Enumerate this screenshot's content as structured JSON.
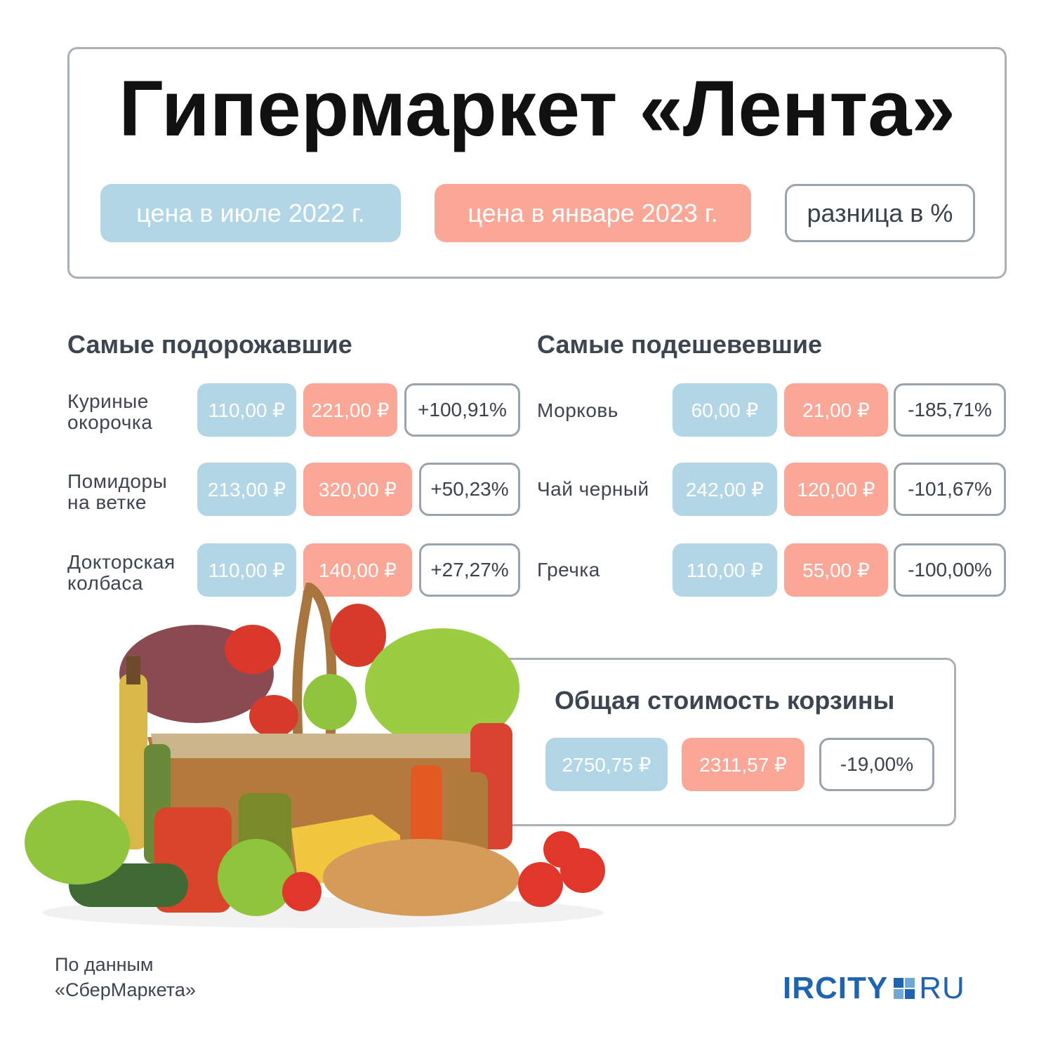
{
  "title": "Гипермаркет «Лента»",
  "legend": {
    "july": "цена в июле 2022 г.",
    "january": "цена в январе 2023 г.",
    "diff": "разница в %"
  },
  "colors": {
    "july": "#b3d6e6",
    "january": "#fba797",
    "outline": "#9aa3ab",
    "logo": "#1f64b0"
  },
  "rose": {
    "heading": "Самые подорожавшие",
    "items": [
      {
        "name_line1": "Куриные",
        "name_line2": "окорочка",
        "july": "110,00 ₽",
        "jan": "221,00 ₽",
        "diff": "+100,91%"
      },
      {
        "name_line1": "Помидоры",
        "name_line2": "на ветке",
        "july": "213,00 ₽",
        "jan": "320,00 ₽",
        "diff": "+50,23%"
      },
      {
        "name_line1": "Докторская",
        "name_line2": "колбаса",
        "july": "110,00 ₽",
        "jan": "140,00 ₽",
        "diff": "+27,27%"
      }
    ]
  },
  "fell": {
    "heading": "Самые подешевевшие",
    "items": [
      {
        "name": "Морковь",
        "july": "60,00 ₽",
        "jan": "21,00 ₽",
        "diff": "-185,71%"
      },
      {
        "name": "Чай черный",
        "july": "242,00 ₽",
        "jan": "120,00 ₽",
        "diff": "-101,67%"
      },
      {
        "name": "Гречка",
        "july": "110,00 ₽",
        "jan": "55,00 ₽",
        "diff": "-100,00%"
      }
    ]
  },
  "basket": {
    "heading": "Общая стоимость корзины",
    "july": "2750,75 ₽",
    "jan": "2311,57 ₽",
    "diff": "-19,00%"
  },
  "source": {
    "line1": "По данным",
    "line2": "«СберМаркета»"
  },
  "logo": {
    "part1": "IRCITY",
    "part2": "RU"
  }
}
